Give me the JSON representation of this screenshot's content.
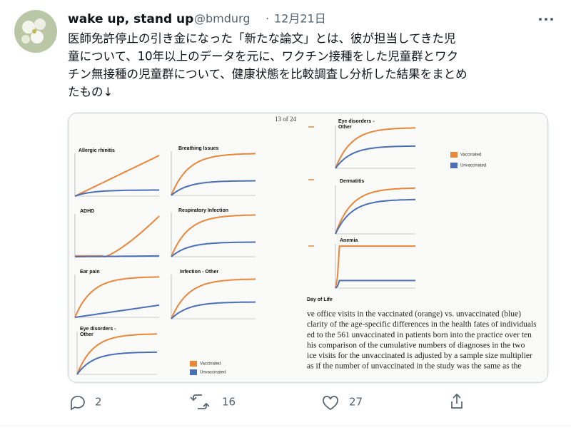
{
  "tweet": {
    "author": {
      "name": "wake up, stand up",
      "handle": "@bmdurg",
      "date": "12月21日"
    },
    "text_lines": [
      "医師免許停止の引き金になった「新たな論文」とは、彼が担当してきた児",
      "童について、10年以上のデータを元に、ワクチン接種をした児童群とワク",
      "チン無接種の児童群について、健康状態を比較調査し分析した結果をまとめ",
      "たもの↓"
    ],
    "image": {
      "page_label": "13 of 24",
      "panels": [
        "Allergic rhinitis",
        "Breathing Issues",
        "ADHD",
        "Respiratory Infection",
        "Ear pain",
        "Infection - Other",
        "Eye disorders - Other",
        "Eye disorders - Other",
        "Dermatitis",
        "Anemia"
      ],
      "legend": [
        "Vaccinated",
        "Unvaccinated"
      ],
      "x_axis_label": "Day of Life",
      "caption_lines": [
        "ve office visits in the vaccinated (orange) vs.  unvaccinated (blue)",
        "clarity of the age-specific differences in the health fates of individuals",
        "ed to the 561 unvaccinated in patients born into the practice over ten",
        "his comparison of the cumulative numbers of diagnoses in the two",
        "ice visits for the unvaccinated is adjusted by a sample size multiplier",
        "as if the number of unvaccinated in the study was the same as the"
      ]
    },
    "actions": {
      "replies": "2",
      "retweets": "16",
      "likes": "27"
    }
  }
}
